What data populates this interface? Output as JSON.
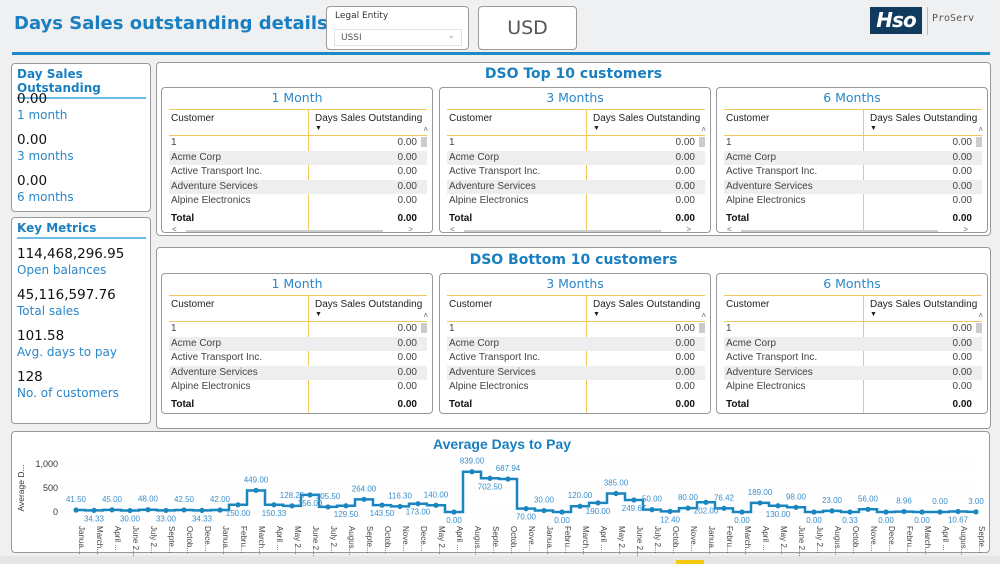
{
  "header": {
    "title": "Days Sales outstanding details",
    "legal_entity_label": "Legal Entity",
    "legal_entity_value": "USSI",
    "currency": "USD",
    "logo_text": "Hso",
    "logo_sub": "ProServ"
  },
  "dso_card": {
    "title": "Day Sales Outstanding",
    "items": [
      {
        "value": "0.00",
        "label": "1 month"
      },
      {
        "value": "0.00",
        "label": "3 months"
      },
      {
        "value": "0.00",
        "label": "6 months"
      }
    ]
  },
  "key_metrics": {
    "title": "Key Metrics",
    "items": [
      {
        "value": "114,468,296.95",
        "label": "Open balances"
      },
      {
        "value": "45,116,597.76",
        "label": "Total sales"
      },
      {
        "value": "101.58",
        "label": "Avg. days to pay"
      },
      {
        "value": "128",
        "label": "No. of customers"
      }
    ]
  },
  "top10": {
    "title": "DSO Top 10 customers",
    "tables": [
      {
        "title": "1 Month",
        "col1": "Customer",
        "col2": "Days Sales Outstanding",
        "rows": [
          [
            "1",
            "0.00"
          ],
          [
            "Acme Corp",
            "0.00"
          ],
          [
            "Active Transport Inc.",
            "0.00"
          ],
          [
            "Adventure Services",
            "0.00"
          ],
          [
            "Alpine Electronics",
            "0.00"
          ]
        ],
        "total_label": "Total",
        "total": "0.00"
      },
      {
        "title": "3 Months",
        "col1": "Customer",
        "col2": "Days Sales Outstanding",
        "rows": [
          [
            "1",
            "0.00"
          ],
          [
            "Acme Corp",
            "0.00"
          ],
          [
            "Active Transport Inc.",
            "0.00"
          ],
          [
            "Adventure Services",
            "0.00"
          ],
          [
            "Alpine Electronics",
            "0.00"
          ]
        ],
        "total_label": "Total",
        "total": "0.00"
      },
      {
        "title": "6 Months",
        "col1": "Customer",
        "col2": "Days Sales Outstanding",
        "rows": [
          [
            "1",
            "0.00"
          ],
          [
            "Acme Corp",
            "0.00"
          ],
          [
            "Active Transport Inc.",
            "0.00"
          ],
          [
            "Adventure Services",
            "0.00"
          ],
          [
            "Alpine Electronics",
            "0.00"
          ]
        ],
        "total_label": "Total",
        "total": "0.00"
      }
    ]
  },
  "bottom10": {
    "title": "DSO Bottom 10 customers",
    "tables": [
      {
        "title": "1 Month",
        "col1": "Customer",
        "col2": "Days Sales Outstanding",
        "rows": [
          [
            "1",
            "0.00"
          ],
          [
            "Acme Corp",
            "0.00"
          ],
          [
            "Active Transport Inc.",
            "0.00"
          ],
          [
            "Adventure Services",
            "0.00"
          ],
          [
            "Alpine Electronics",
            "0.00"
          ]
        ],
        "total_label": "Total",
        "total": "0.00"
      },
      {
        "title": "3 Months",
        "col1": "Customer",
        "col2": "Days Sales Outstanding",
        "rows": [
          [
            "1",
            "0.00"
          ],
          [
            "Acme Corp",
            "0.00"
          ],
          [
            "Active Transport Inc.",
            "0.00"
          ],
          [
            "Adventure Services",
            "0.00"
          ],
          [
            "Alpine Electronics",
            "0.00"
          ]
        ],
        "total_label": "Total",
        "total": "0.00"
      },
      {
        "title": "6 Months",
        "col1": "Customer",
        "col2": "Days Sales Outstanding",
        "rows": [
          [
            "1",
            "0.00"
          ],
          [
            "Acme Corp",
            "0.00"
          ],
          [
            "Active Transport Inc.",
            "0.00"
          ],
          [
            "Adventure Services",
            "0.00"
          ],
          [
            "Alpine Electronics",
            "0.00"
          ]
        ],
        "total_label": "Total",
        "total": "0.00"
      }
    ]
  },
  "chart_data": {
    "type": "line",
    "title": "Average Days to Pay",
    "ylabel": "Average D...",
    "xlabel": "",
    "ylim": [
      0,
      1000
    ],
    "yticks": [
      "0",
      "500",
      "1,000"
    ],
    "grid": true,
    "color": "#1a86c0",
    "categories": [
      "Janua...",
      "March...",
      "April ...",
      "June 2...",
      "July 2...",
      "Septe...",
      "Octob...",
      "Dece...",
      "Janua...",
      "Febru...",
      "March...",
      "April ...",
      "May 2...",
      "June 2...",
      "July 2...",
      "Augus...",
      "Septe...",
      "Octob...",
      "Nove...",
      "Dece...",
      "May 2...",
      "April ...",
      "Augus...",
      "Septe...",
      "Octob...",
      "Nove...",
      "Janua...",
      "Febru...",
      "March...",
      "April ...",
      "May 2...",
      "June 2...",
      "July 2...",
      "Octob...",
      "Nove...",
      "Janua...",
      "Febru...",
      "March...",
      "April ...",
      "May 2...",
      "June 2...",
      "July 2...",
      "Augus...",
      "Octob...",
      "Nove...",
      "Dece...",
      "Febru...",
      "March...",
      "April ...",
      "Augus...",
      "Septe..."
    ],
    "values": [
      41.5,
      34.33,
      45,
      30,
      48,
      33,
      42.5,
      34.33,
      42,
      150,
      449,
      150.33,
      128.25,
      356,
      105.5,
      129.5,
      264,
      143.5,
      116.3,
      173,
      140,
      0,
      839,
      702.5,
      687.94,
      70,
      30,
      0,
      120,
      190,
      385,
      249.67,
      50,
      12.4,
      80,
      202,
      76.42,
      0,
      189,
      130,
      98,
      0,
      23,
      0.33,
      56,
      0,
      8.96,
      0,
      0,
      10.67,
      3
    ]
  }
}
